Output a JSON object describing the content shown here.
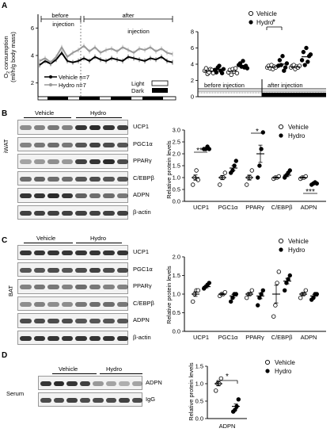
{
  "panels": {
    "A": "A",
    "B": "B",
    "C": "C",
    "D": "D"
  },
  "panelA": {
    "ylabel": "O",
    "ylabel_sub": "2",
    "ylabel_rest": " consumption",
    "ylabel2": "(ml/h/g body mass)",
    "yticks": [
      "2",
      "4",
      "6"
    ],
    "before_label_1": "before",
    "before_label_2": "injection",
    "after_label_1": "after",
    "after_label_2": "injection",
    "legend_vehicle": "Vehicle n=7",
    "legend_hydro": "Hydro  n=7",
    "light": "Light",
    "dark": "Dark"
  },
  "panelA_right": {
    "legend": [
      "Vehicle",
      "Hydro"
    ],
    "yticks": [
      "0",
      "2",
      "4",
      "6",
      "8"
    ],
    "star": "*",
    "before": "before injection",
    "after": "after injection"
  },
  "panelB": {
    "side": "iWAT",
    "groups": [
      "Vehicle",
      "Hydro"
    ],
    "rows": [
      "UCP1",
      "PGC1α",
      "PPARγ",
      "C/EBPβ",
      "ADPN",
      "β-actin"
    ],
    "ylabel": "Relative protein levels",
    "yticks": [
      "0.0",
      "0.5",
      "1.0",
      "1.5",
      "2.0",
      "2.5",
      "3.0"
    ],
    "xcats": [
      "UCP1",
      "PGC1α",
      "PPARγ",
      "C/EBPβ",
      "ADPN"
    ],
    "legend": [
      "Vehicle",
      "Hydro"
    ],
    "stars": [
      "***",
      "*",
      "***"
    ]
  },
  "panelC": {
    "side": "BAT",
    "groups": [
      "Vehicle",
      "Hydro"
    ],
    "rows": [
      "UCP1",
      "PGC1α",
      "PPARγ",
      "C/EBPβ",
      "ADPN",
      "β-actin"
    ],
    "ylabel": "Relative protein levels",
    "yticks": [
      "0.0",
      "0.5",
      "1.0",
      "1.5",
      "2.0"
    ],
    "xcats": [
      "UCP1",
      "PGC1α",
      "PPARγ",
      "C/EBPβ",
      "ADPN"
    ],
    "legend": [
      "Vehicle",
      "Hydro"
    ]
  },
  "panelD": {
    "side": "Serum",
    "groups": [
      "Vehicle",
      "Hydro"
    ],
    "rows": [
      "ADPN",
      "IgG"
    ],
    "ylabel": "Relative protein levels",
    "yticks": [
      "0.0",
      "0.5",
      "1.0",
      "1.5"
    ],
    "xcats": [
      "ADPN"
    ],
    "legend": [
      "Vehicle",
      "Hydro"
    ],
    "star": "*"
  },
  "chart_data": [
    {
      "type": "line",
      "title": "",
      "xlabel": "",
      "ylabel": "O2 consumption (ml/h/g body mass)",
      "ylim": [
        1,
        7
      ],
      "series": [
        {
          "name": "Vehicle n=7",
          "values": [
            3.3,
            3.6,
            3.4,
            3.7,
            4.2,
            3.6,
            3.5,
            3.6,
            3.8,
            3.6,
            3.9,
            3.7,
            3.6,
            3.8,
            3.7,
            3.6,
            3.9,
            3.8,
            3.7,
            3.6,
            3.8,
            3.7,
            3.9,
            3.6,
            3.5
          ]
        },
        {
          "name": "Hydro  n=7",
          "values": [
            3.6,
            3.8,
            3.5,
            3.9,
            4.6,
            3.9,
            4.2,
            4.4,
            4.7,
            4.3,
            4.6,
            4.2,
            4.4,
            4.5,
            4.3,
            4.6,
            4.4,
            4.2,
            4.5,
            4.4,
            4.6,
            4.3,
            4.5,
            4.2,
            4.1
          ]
        }
      ]
    },
    {
      "type": "scatter",
      "title": "",
      "ylim": [
        0,
        8
      ],
      "categories": [
        "before injection",
        "after injection"
      ],
      "series": [
        {
          "name": "Vehicle",
          "values": [
            [
              3.2,
              3.5,
              2.8,
              3.0,
              3.4,
              3.3,
              2.9
            ],
            [
              3.0,
              3.3,
              2.7,
              3.4,
              3.1,
              3.5,
              2.9
            ],
            [
              3.6,
              3.8,
              3.5,
              3.9,
              3.4,
              3.7,
              3.6
            ],
            [
              3.6,
              3.8,
              3.9,
              3.4,
              3.7,
              3.6,
              3.8
            ]
          ]
        },
        {
          "name": "Hydro",
          "values": [
            [
              3.3,
              3.0,
              3.6,
              3.8,
              3.2,
              2.9,
              3.4
            ],
            [
              3.9,
              4.1,
              3.7,
              4.4,
              3.6,
              3.8,
              3.5
            ],
            [
              3.8,
              4.5,
              3.9,
              5.0,
              3.2,
              3.6,
              4.1
            ],
            [
              4.5,
              5.5,
              3.9,
              6.0,
              4.3,
              5.0,
              5.2
            ]
          ]
        }
      ]
    },
    {
      "type": "scatter",
      "title": "",
      "ylabel": "Relative protein levels",
      "ylim": [
        0,
        3
      ],
      "categories": [
        "UCP1",
        "PGC1α",
        "PPARγ",
        "C/EBPβ",
        "ADPN"
      ],
      "series": [
        {
          "name": "Vehicle",
          "means": [
            1.0,
            1.0,
            1.0,
            1.0,
            1.0
          ],
          "values": [
            [
              0.7,
              1.0,
              1.3,
              0.9
            ],
            [
              0.7,
              1.0,
              1.0,
              1.2
            ],
            [
              0.7,
              1.0,
              1.0,
              1.3
            ],
            [
              0.95,
              1.0,
              1.0,
              1.05
            ],
            [
              0.95,
              1.0,
              1.0,
              1.05
            ]
          ]
        },
        {
          "name": "Hydro",
          "means": [
            2.2,
            1.4,
            2.0,
            1.1,
            0.75
          ],
          "values": [
            [
              2.2,
              2.2,
              2.3,
              2.2
            ],
            [
              1.2,
              1.3,
              1.5,
              1.7
            ],
            [
              1.0,
              1.5,
              2.2,
              2.9
            ],
            [
              1.0,
              1.1,
              1.2,
              1.3
            ],
            [
              0.7,
              0.75,
              0.8,
              0.75
            ]
          ]
        }
      ]
    },
    {
      "type": "scatter",
      "title": "",
      "ylabel": "Relative protein levels",
      "ylim": [
        0,
        2
      ],
      "categories": [
        "UCP1",
        "PGC1α",
        "PPARγ",
        "C/EBPβ",
        "ADPN"
      ],
      "series": [
        {
          "name": "Vehicle",
          "means": [
            1.0,
            1.0,
            1.0,
            1.0,
            1.0
          ],
          "values": [
            [
              0.8,
              1.0,
              1.1,
              1.1
            ],
            [
              0.95,
              1.0,
              1.0,
              1.05
            ],
            [
              0.9,
              1.0,
              1.0,
              1.1
            ],
            [
              0.4,
              0.7,
              1.3,
              1.6
            ],
            [
              0.9,
              1.0,
              1.0,
              1.1
            ]
          ]
        },
        {
          "name": "Hydro",
          "means": [
            1.2,
            0.95,
            0.95,
            1.35,
            0.95
          ],
          "values": [
            [
              1.15,
              1.2,
              1.25,
              1.3
            ],
            [
              0.8,
              0.9,
              1.0,
              1.0
            ],
            [
              0.7,
              0.9,
              1.0,
              1.1
            ],
            [
              1.1,
              1.3,
              1.4,
              1.5
            ],
            [
              0.85,
              0.9,
              1.0,
              1.0
            ]
          ]
        }
      ]
    },
    {
      "type": "scatter",
      "title": "",
      "ylabel": "Relative protein levels",
      "ylim": [
        0,
        1.5
      ],
      "categories": [
        "ADPN"
      ],
      "series": [
        {
          "name": "Vehicle",
          "means": [
            1.0
          ],
          "values": [
            [
              0.8,
              1.0,
              1.0,
              1.15
            ]
          ]
        },
        {
          "name": "Hydro",
          "means": [
            0.35
          ],
          "values": [
            [
              0.2,
              0.25,
              0.35,
              0.55
            ]
          ]
        }
      ]
    }
  ]
}
